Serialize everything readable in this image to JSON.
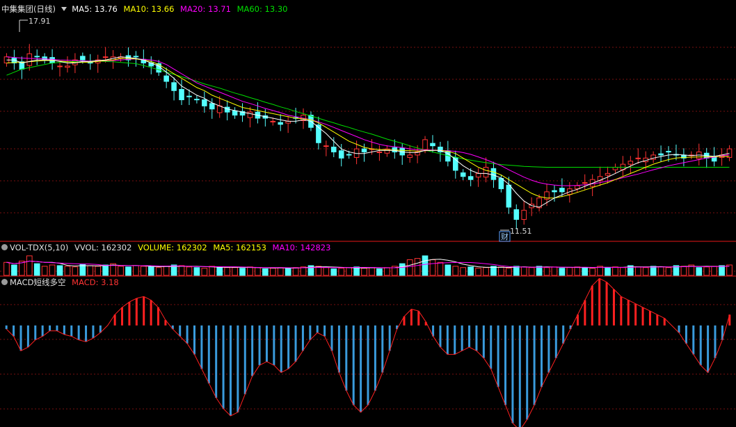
{
  "colors": {
    "background": "#000000",
    "grid": "#7a1010",
    "divider": "#9b1111",
    "up": "#ff3333",
    "down": "#54ffff",
    "ma5": "#ffffff",
    "ma10": "#ffff00",
    "ma20": "#ff00ff",
    "ma60": "#00e000",
    "macd_pos": "#ff2020",
    "macd_neg": "#3a9bdc",
    "text": "#c8c8c8"
  },
  "price_panel": {
    "title": "中集集团(日线)",
    "ma5_label": "MA5: 13.76",
    "ma10_label": "MA10: 13.66",
    "ma20_label": "MA20: 13.71",
    "ma60_label": "MA60: 13.30",
    "high_label": "17.91",
    "low_label": "11.51",
    "marker_label": "财"
  },
  "volume_panel": {
    "title": "VOL-TDX(5,10)",
    "vvol_label": "VVOL: 162302",
    "volume_label": "VOLUME: 162302",
    "ma5_label": "MA5: 162153",
    "ma10_label": "MA10: 142823"
  },
  "macd_panel": {
    "title": "MACD短线多空",
    "macd_label": "MACD: 3.18"
  },
  "chart_data": [
    {
      "type": "candlestick",
      "title": "中集集团(日线)",
      "price_range": [
        11.0,
        18.3
      ],
      "annotations": {
        "high": 17.91,
        "low": 11.51
      },
      "closes": [
        16.9,
        16.7,
        16.5,
        17.0,
        16.9,
        16.8,
        16.7,
        16.6,
        16.6,
        16.8,
        16.8,
        16.7,
        16.8,
        16.9,
        16.9,
        16.9,
        16.8,
        16.9,
        16.7,
        16.6,
        16.4,
        16.1,
        15.8,
        15.5,
        15.6,
        15.5,
        15.3,
        15.2,
        15.3,
        15.1,
        15.0,
        15.0,
        15.1,
        14.9,
        14.9,
        14.8,
        14.7,
        14.8,
        14.9,
        15.0,
        14.6,
        14.1,
        14.0,
        13.8,
        13.6,
        13.7,
        13.9,
        13.8,
        13.9,
        13.8,
        13.9,
        13.8,
        13.7,
        13.7,
        13.8,
        14.2,
        14.0,
        13.8,
        13.5,
        13.2,
        13.0,
        12.9,
        13.1,
        13.3,
        12.9,
        12.6,
        12.0,
        11.6,
        11.9,
        12.1,
        12.3,
        12.5,
        12.5,
        12.5,
        12.6,
        12.7,
        12.8,
        12.9,
        13.0,
        13.1,
        13.3,
        13.4,
        13.5,
        13.6,
        13.6,
        13.7,
        13.7,
        13.8,
        13.7,
        13.6,
        13.7,
        13.8,
        13.6,
        13.5,
        13.7,
        13.9
      ],
      "ma5": [
        16.8,
        16.8,
        16.7,
        16.75,
        16.8,
        16.8,
        16.8,
        16.75,
        16.7,
        16.7,
        16.75,
        16.75,
        16.78,
        16.8,
        16.85,
        16.9,
        16.88,
        16.85,
        16.8,
        16.7,
        16.6,
        16.4,
        16.2,
        15.95,
        15.8,
        15.65,
        15.55,
        15.4,
        15.3,
        15.2,
        15.15,
        15.1,
        15.05,
        15.0,
        14.95,
        14.9,
        14.85,
        14.8,
        14.8,
        14.85,
        14.8,
        14.6,
        14.4,
        14.15,
        13.9,
        13.8,
        13.75,
        13.75,
        13.8,
        13.85,
        13.85,
        13.85,
        13.8,
        13.78,
        13.78,
        13.85,
        13.85,
        13.85,
        13.75,
        13.55,
        13.35,
        13.2,
        13.1,
        13.1,
        13.05,
        12.95,
        12.75,
        12.45,
        12.2,
        12.05,
        12.0,
        12.15,
        12.3,
        12.4,
        12.5,
        12.58,
        12.68,
        12.78,
        12.88,
        12.98,
        13.1,
        13.22,
        13.34,
        13.45,
        13.52,
        13.6,
        13.65,
        13.7,
        13.72,
        13.7,
        13.68,
        13.7,
        13.68,
        13.66,
        13.7,
        13.76
      ],
      "ma10": [
        16.7,
        16.72,
        16.72,
        16.74,
        16.76,
        16.78,
        16.78,
        16.76,
        16.74,
        16.72,
        16.72,
        16.73,
        16.75,
        16.78,
        16.8,
        16.85,
        16.85,
        16.83,
        16.8,
        16.75,
        16.65,
        16.5,
        16.35,
        16.2,
        16.05,
        15.9,
        15.8,
        15.65,
        15.55,
        15.45,
        15.35,
        15.25,
        15.2,
        15.15,
        15.1,
        15.05,
        15.0,
        14.95,
        14.9,
        14.88,
        14.85,
        14.75,
        14.6,
        14.45,
        14.3,
        14.15,
        14.05,
        13.95,
        13.9,
        13.88,
        13.87,
        13.86,
        13.85,
        13.84,
        13.83,
        13.84,
        13.85,
        13.85,
        13.82,
        13.75,
        13.6,
        13.45,
        13.3,
        13.2,
        13.15,
        13.05,
        12.9,
        12.75,
        12.6,
        12.45,
        12.35,
        12.3,
        12.3,
        12.35,
        12.4,
        12.48,
        12.56,
        12.64,
        12.72,
        12.8,
        12.9,
        13.0,
        13.1,
        13.2,
        13.3,
        13.4,
        13.48,
        13.55,
        13.6,
        13.62,
        13.63,
        13.64,
        13.64,
        13.65,
        13.65,
        13.66
      ],
      "ma20": [
        16.9,
        16.88,
        16.86,
        16.85,
        16.84,
        16.83,
        16.82,
        16.8,
        16.79,
        16.78,
        16.77,
        16.76,
        16.76,
        16.77,
        16.78,
        16.8,
        16.82,
        16.83,
        16.82,
        16.8,
        16.75,
        16.65,
        16.5,
        16.35,
        16.2,
        16.05,
        15.95,
        15.85,
        15.75,
        15.65,
        15.55,
        15.45,
        15.38,
        15.3,
        15.22,
        15.15,
        15.08,
        15.0,
        14.95,
        14.9,
        14.85,
        14.78,
        14.7,
        14.6,
        14.5,
        14.4,
        14.3,
        14.2,
        14.12,
        14.05,
        14.0,
        13.97,
        13.94,
        13.9,
        13.87,
        13.86,
        13.86,
        13.85,
        13.84,
        13.82,
        13.78,
        13.72,
        13.64,
        13.55,
        13.45,
        13.35,
        13.22,
        13.1,
        12.98,
        12.88,
        12.8,
        12.75,
        12.72,
        12.7,
        12.7,
        12.71,
        12.73,
        12.76,
        12.8,
        12.85,
        12.9,
        12.96,
        13.02,
        13.08,
        13.15,
        13.22,
        13.28,
        13.35,
        13.4,
        13.45,
        13.5,
        13.55,
        13.6,
        13.63,
        13.67,
        13.71
      ],
      "ma60": [
        16.3,
        16.4,
        16.5,
        16.55,
        16.6,
        16.65,
        16.7,
        16.72,
        16.74,
        16.75,
        16.76,
        16.76,
        16.76,
        16.75,
        16.74,
        16.72,
        16.7,
        16.68,
        16.62,
        16.55,
        16.48,
        16.4,
        16.33,
        16.25,
        16.18,
        16.1,
        16.02,
        15.95,
        15.88,
        15.8,
        15.72,
        15.65,
        15.57,
        15.5,
        15.42,
        15.35,
        15.27,
        15.2,
        15.12,
        15.05,
        14.97,
        14.9,
        14.82,
        14.75,
        14.67,
        14.6,
        14.52,
        14.45,
        14.38,
        14.3,
        14.22,
        14.15,
        14.08,
        14.0,
        13.93,
        13.86,
        13.8,
        13.74,
        13.68,
        13.63,
        13.58,
        13.53,
        13.49,
        13.45,
        13.42,
        13.39,
        13.37,
        13.35,
        13.33,
        13.32,
        13.31,
        13.3,
        13.3,
        13.3,
        13.3,
        13.3,
        13.3,
        13.3,
        13.3,
        13.3,
        13.3,
        13.3,
        13.3,
        13.3,
        13.3,
        13.3,
        13.3,
        13.3,
        13.3,
        13.3,
        13.3,
        13.3,
        13.3,
        13.3,
        13.3,
        13.3
      ],
      "series": [
        {
          "name": "MA5",
          "value": 13.76
        },
        {
          "name": "MA10",
          "value": 13.66
        },
        {
          "name": "MA20",
          "value": 13.71
        },
        {
          "name": "MA60",
          "value": 13.3
        }
      ]
    },
    {
      "type": "bar",
      "title": "VOL-TDX(5,10)",
      "volume": [
        20,
        16,
        22,
        30,
        18,
        14,
        16,
        15,
        14,
        13,
        17,
        15,
        14,
        16,
        18,
        14,
        13,
        15,
        14,
        13,
        12,
        14,
        16,
        15,
        13,
        12,
        11,
        14,
        13,
        12,
        12,
        11,
        13,
        12,
        10,
        11,
        12,
        11,
        12,
        13,
        15,
        14,
        12,
        10,
        11,
        12,
        13,
        11,
        12,
        10,
        12,
        14,
        18,
        24,
        26,
        30,
        24,
        20,
        16,
        14,
        12,
        13,
        11,
        12,
        14,
        13,
        11,
        14,
        13,
        12,
        14,
        12,
        13,
        11,
        12,
        13,
        12,
        11,
        14,
        12,
        13,
        12,
        15,
        13,
        12,
        14,
        13,
        12,
        15,
        14,
        16,
        12,
        13,
        14,
        15,
        16
      ],
      "series": [
        {
          "name": "VVOL",
          "value": 162302
        },
        {
          "name": "VOLUME",
          "value": 162302
        },
        {
          "name": "MA5",
          "value": 162153
        },
        {
          "name": "MA10",
          "value": 142823
        }
      ]
    },
    {
      "type": "bar",
      "title": "MACD短线多空",
      "values": [
        -2,
        -6,
        -14,
        -12,
        -8,
        -6,
        -3,
        -3,
        -5,
        -6,
        -8,
        -9,
        -7,
        -4,
        0,
        6,
        10,
        13,
        15,
        16,
        14,
        10,
        3,
        -2,
        -6,
        -10,
        -16,
        -24,
        -32,
        -40,
        -46,
        -50,
        -48,
        -38,
        -28,
        -22,
        -20,
        -22,
        -26,
        -24,
        -20,
        -14,
        -8,
        -4,
        -6,
        -14,
        -26,
        -36,
        -44,
        -48,
        -44,
        -36,
        -26,
        -14,
        -2,
        5,
        9,
        8,
        2,
        -6,
        -12,
        -16,
        -16,
        -14,
        -12,
        -14,
        -18,
        -24,
        -34,
        -44,
        -54,
        -58,
        -52,
        -44,
        -34,
        -26,
        -18,
        -10,
        -2,
        6,
        14,
        22,
        26,
        24,
        20,
        16,
        14,
        12,
        10,
        8,
        6,
        4,
        0,
        -4,
        -10,
        -16,
        -22,
        -26,
        -18,
        -8,
        6
      ],
      "series": [
        {
          "name": "MACD",
          "value": 3.18
        }
      ]
    }
  ]
}
